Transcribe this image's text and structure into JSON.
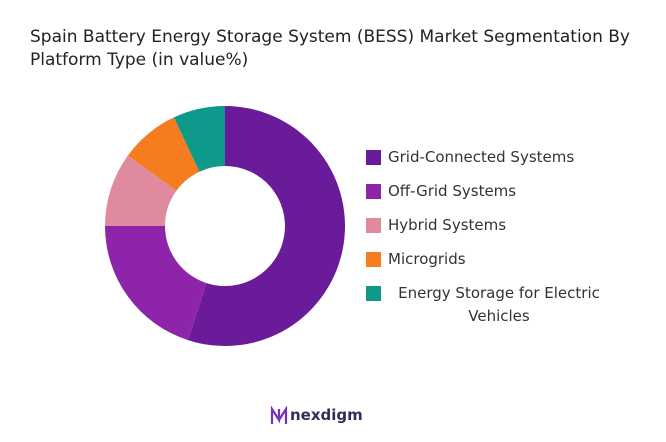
{
  "chart_data": {
    "type": "donut",
    "title": "Spain Battery Energy Storage System (BESS) Market Segmentation By Platform Type (in value%)",
    "categories": [
      "Grid-Connected Systems",
      "Off-Grid Systems",
      "Hybrid Systems",
      "Microgrids",
      "Energy Storage for Electric Vehicles"
    ],
    "values": [
      55,
      20,
      10,
      8,
      7
    ],
    "colors": [
      "#6a1b9a",
      "#8e24aa",
      "#e08aa0",
      "#f57c1f",
      "#0e9a8a"
    ],
    "legend": "right"
  },
  "brand": "nexdigm"
}
